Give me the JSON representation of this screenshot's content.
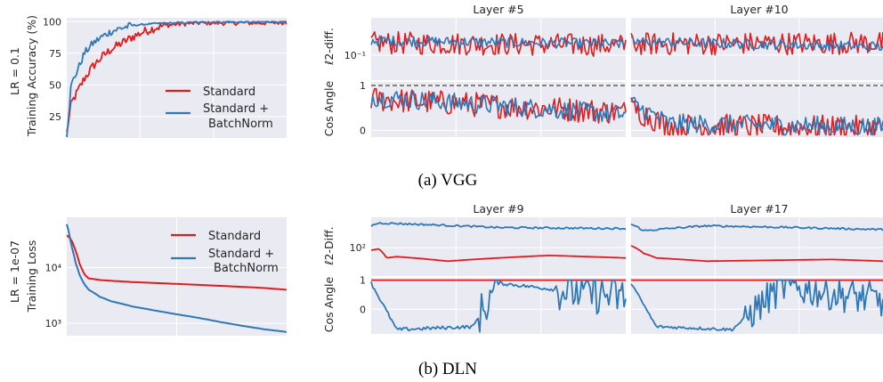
{
  "colors": {
    "standard": "#e41a1c",
    "batchnorm": "#2e78b8",
    "panel": "#eaeaf2",
    "grid": "#ffffff",
    "dashed": "#444444"
  },
  "captions": {
    "a": "(a) VGG",
    "b": "(b) DLN"
  },
  "chart_data": [
    {
      "id": "vgg-accuracy",
      "type": "line",
      "row_label": "LR = 0.1",
      "ylabel": "Training Accuracy (%)",
      "xlabel": "",
      "ylim": [
        8,
        103
      ],
      "yticks": [
        25,
        50,
        75,
        100
      ],
      "grid": true,
      "legend": "center-right",
      "legend_labels": [
        "Standard",
        "Standard +",
        "BatchNorm"
      ],
      "series": [
        {
          "name": "Standard",
          "color": "#e41a1c",
          "x": [
            0,
            0.02,
            0.05,
            0.08,
            0.12,
            0.16,
            0.2,
            0.25,
            0.3,
            0.35,
            0.4,
            0.45,
            0.5,
            0.6,
            0.7,
            0.8,
            0.9,
            1
          ],
          "y": [
            12,
            35,
            45,
            55,
            65,
            72,
            78,
            83,
            88,
            92,
            95,
            97,
            98,
            99,
            99,
            99,
            99,
            99.5
          ]
        },
        {
          "name": "Standard + BatchNorm",
          "color": "#2e78b8",
          "x": [
            0,
            0.02,
            0.05,
            0.08,
            0.12,
            0.16,
            0.2,
            0.25,
            0.3,
            0.4,
            0.5,
            0.6,
            0.7,
            0.8,
            0.9,
            1
          ],
          "y": [
            10,
            50,
            62,
            75,
            83,
            88,
            92,
            95,
            97,
            98.5,
            99,
            99.3,
            99.5,
            99.6,
            99.7,
            99.8
          ]
        }
      ]
    },
    {
      "id": "vgg-layer5",
      "type": "line",
      "title": "Layer #5",
      "ylabel_top": "ℓ2-diff.",
      "ylabel_bottom": "Cos Angle",
      "top": {
        "yscale": "log",
        "ylim": [
          0.03,
          0.6
        ],
        "yticks": [
          0.1
        ],
        "ytick_labels": [
          "10⁻¹"
        ],
        "series": [
          {
            "name": "Standard",
            "color": "#e41a1c",
            "x": [
              0,
              1
            ],
            "y": [
              0.18,
              0.16
            ]
          },
          {
            "name": "Standard + BatchNorm",
            "color": "#2e78b8",
            "x": [
              0,
              1
            ],
            "y": [
              0.2,
              0.17
            ]
          }
        ]
      },
      "bottom": {
        "ylim": [
          -0.15,
          1.08
        ],
        "yticks": [
          0,
          1
        ],
        "reference_line": 1,
        "series": [
          {
            "name": "Standard",
            "color": "#e41a1c",
            "x": [
              0,
              1
            ],
            "y": [
              0.7,
              0.4
            ]
          },
          {
            "name": "Standard + BatchNorm",
            "color": "#2e78b8",
            "x": [
              0,
              1
            ],
            "y": [
              0.75,
              0.35
            ]
          }
        ]
      }
    },
    {
      "id": "vgg-layer10",
      "type": "line",
      "title": "Layer #10",
      "top": {
        "yscale": "log",
        "ylim": [
          0.03,
          0.6
        ],
        "series": [
          {
            "name": "Standard",
            "color": "#e41a1c",
            "x": [
              0,
              1
            ],
            "y": [
              0.17,
              0.18
            ]
          },
          {
            "name": "Standard + BatchNorm",
            "color": "#2e78b8",
            "x": [
              0,
              1
            ],
            "y": [
              0.19,
              0.15
            ]
          }
        ]
      },
      "bottom": {
        "ylim": [
          -0.15,
          1.08
        ],
        "reference_line": 1,
        "series": [
          {
            "name": "Standard",
            "color": "#e41a1c",
            "x": [
              0,
              0.15,
              1
            ],
            "y": [
              0.5,
              0.1,
              0.05
            ]
          },
          {
            "name": "Standard + BatchNorm",
            "color": "#2e78b8",
            "x": [
              0,
              0.15,
              1
            ],
            "y": [
              0.6,
              0.15,
              0.08
            ]
          }
        ]
      }
    },
    {
      "id": "dln-loss",
      "type": "line",
      "row_label": "LR = 1e-07",
      "ylabel": "Training Loss",
      "xlabel": "",
      "yscale": "log",
      "ylim": [
        600,
        80000
      ],
      "yticks": [
        1000,
        10000
      ],
      "ytick_labels": [
        "10³",
        "10⁴"
      ],
      "grid": true,
      "legend": "upper-right",
      "legend_labels": [
        "Standard",
        "Standard +",
        "BatchNorm"
      ],
      "series": [
        {
          "name": "Standard",
          "color": "#e41a1c",
          "x": [
            0,
            0.02,
            0.04,
            0.06,
            0.08,
            0.1,
            0.15,
            0.2,
            0.3,
            0.4,
            0.5,
            0.6,
            0.7,
            0.8,
            0.9,
            1
          ],
          "y": [
            38000,
            32000,
            20000,
            11000,
            7500,
            6400,
            6000,
            5800,
            5500,
            5300,
            5100,
            4900,
            4700,
            4500,
            4300,
            4000
          ]
        },
        {
          "name": "Standard + BatchNorm",
          "color": "#2e78b8",
          "x": [
            0,
            0.02,
            0.04,
            0.06,
            0.08,
            0.1,
            0.15,
            0.2,
            0.3,
            0.4,
            0.5,
            0.6,
            0.7,
            0.8,
            0.9,
            1
          ],
          "y": [
            60000,
            25000,
            12000,
            7000,
            5000,
            4000,
            3000,
            2500,
            2000,
            1700,
            1450,
            1250,
            1050,
            900,
            780,
            700
          ]
        }
      ]
    },
    {
      "id": "dln-layer9",
      "type": "line",
      "title": "Layer #9",
      "ylabel_top": "ℓ2-Diff.",
      "ylabel_bottom": "Cos Angle",
      "top": {
        "yscale": "log",
        "ylim": [
          8,
          1500
        ],
        "yticks": [
          100
        ],
        "ytick_labels": [
          "10²"
        ],
        "series": [
          {
            "name": "Standard",
            "color": "#e41a1c",
            "x": [
              0,
              0.03,
              0.06,
              0.1,
              0.3,
              0.7,
              1
            ],
            "y": [
              80,
              90,
              40,
              45,
              30,
              50,
              40
            ]
          },
          {
            "name": "Standard + BatchNorm",
            "color": "#2e78b8",
            "x": [
              0,
              0.03,
              0.5,
              1
            ],
            "y": [
              700,
              900,
              600,
              550
            ]
          }
        ]
      },
      "bottom": {
        "ylim": [
          -0.85,
          1.08
        ],
        "yticks": [
          0,
          1
        ],
        "reference_line": 1,
        "series": [
          {
            "name": "Standard",
            "color": "#e41a1c",
            "x": [
              0,
              1
            ],
            "y": [
              1,
              1
            ]
          },
          {
            "name": "Standard + BatchNorm",
            "color": "#2e78b8",
            "x": [
              0,
              0.1,
              0.4,
              0.5,
              1
            ],
            "y": [
              0.9,
              -0.7,
              -0.6,
              0.9,
              0.4
            ]
          }
        ]
      }
    },
    {
      "id": "dln-layer17",
      "type": "line",
      "title": "Layer #17",
      "top": {
        "yscale": "log",
        "ylim": [
          8,
          1500
        ],
        "series": [
          {
            "name": "Standard",
            "color": "#e41a1c",
            "x": [
              0,
              0.05,
              0.1,
              0.3,
              0.8,
              1
            ],
            "y": [
              120,
              60,
              40,
              30,
              35,
              30
            ]
          },
          {
            "name": "Standard + BatchNorm",
            "color": "#2e78b8",
            "x": [
              0,
              0.05,
              0.3,
              1
            ],
            "y": [
              800,
              450,
              700,
              500
            ]
          }
        ]
      },
      "bottom": {
        "ylim": [
          -0.85,
          1.08
        ],
        "reference_line": 1,
        "series": [
          {
            "name": "Standard",
            "color": "#e41a1c",
            "x": [
              0,
              1
            ],
            "y": [
              1,
              1
            ]
          },
          {
            "name": "Standard + BatchNorm",
            "color": "#2e78b8",
            "x": [
              0,
              0.1,
              0.4,
              0.6,
              1
            ],
            "y": [
              0.9,
              -0.6,
              -0.7,
              0.8,
              0.3
            ]
          }
        ]
      }
    }
  ]
}
